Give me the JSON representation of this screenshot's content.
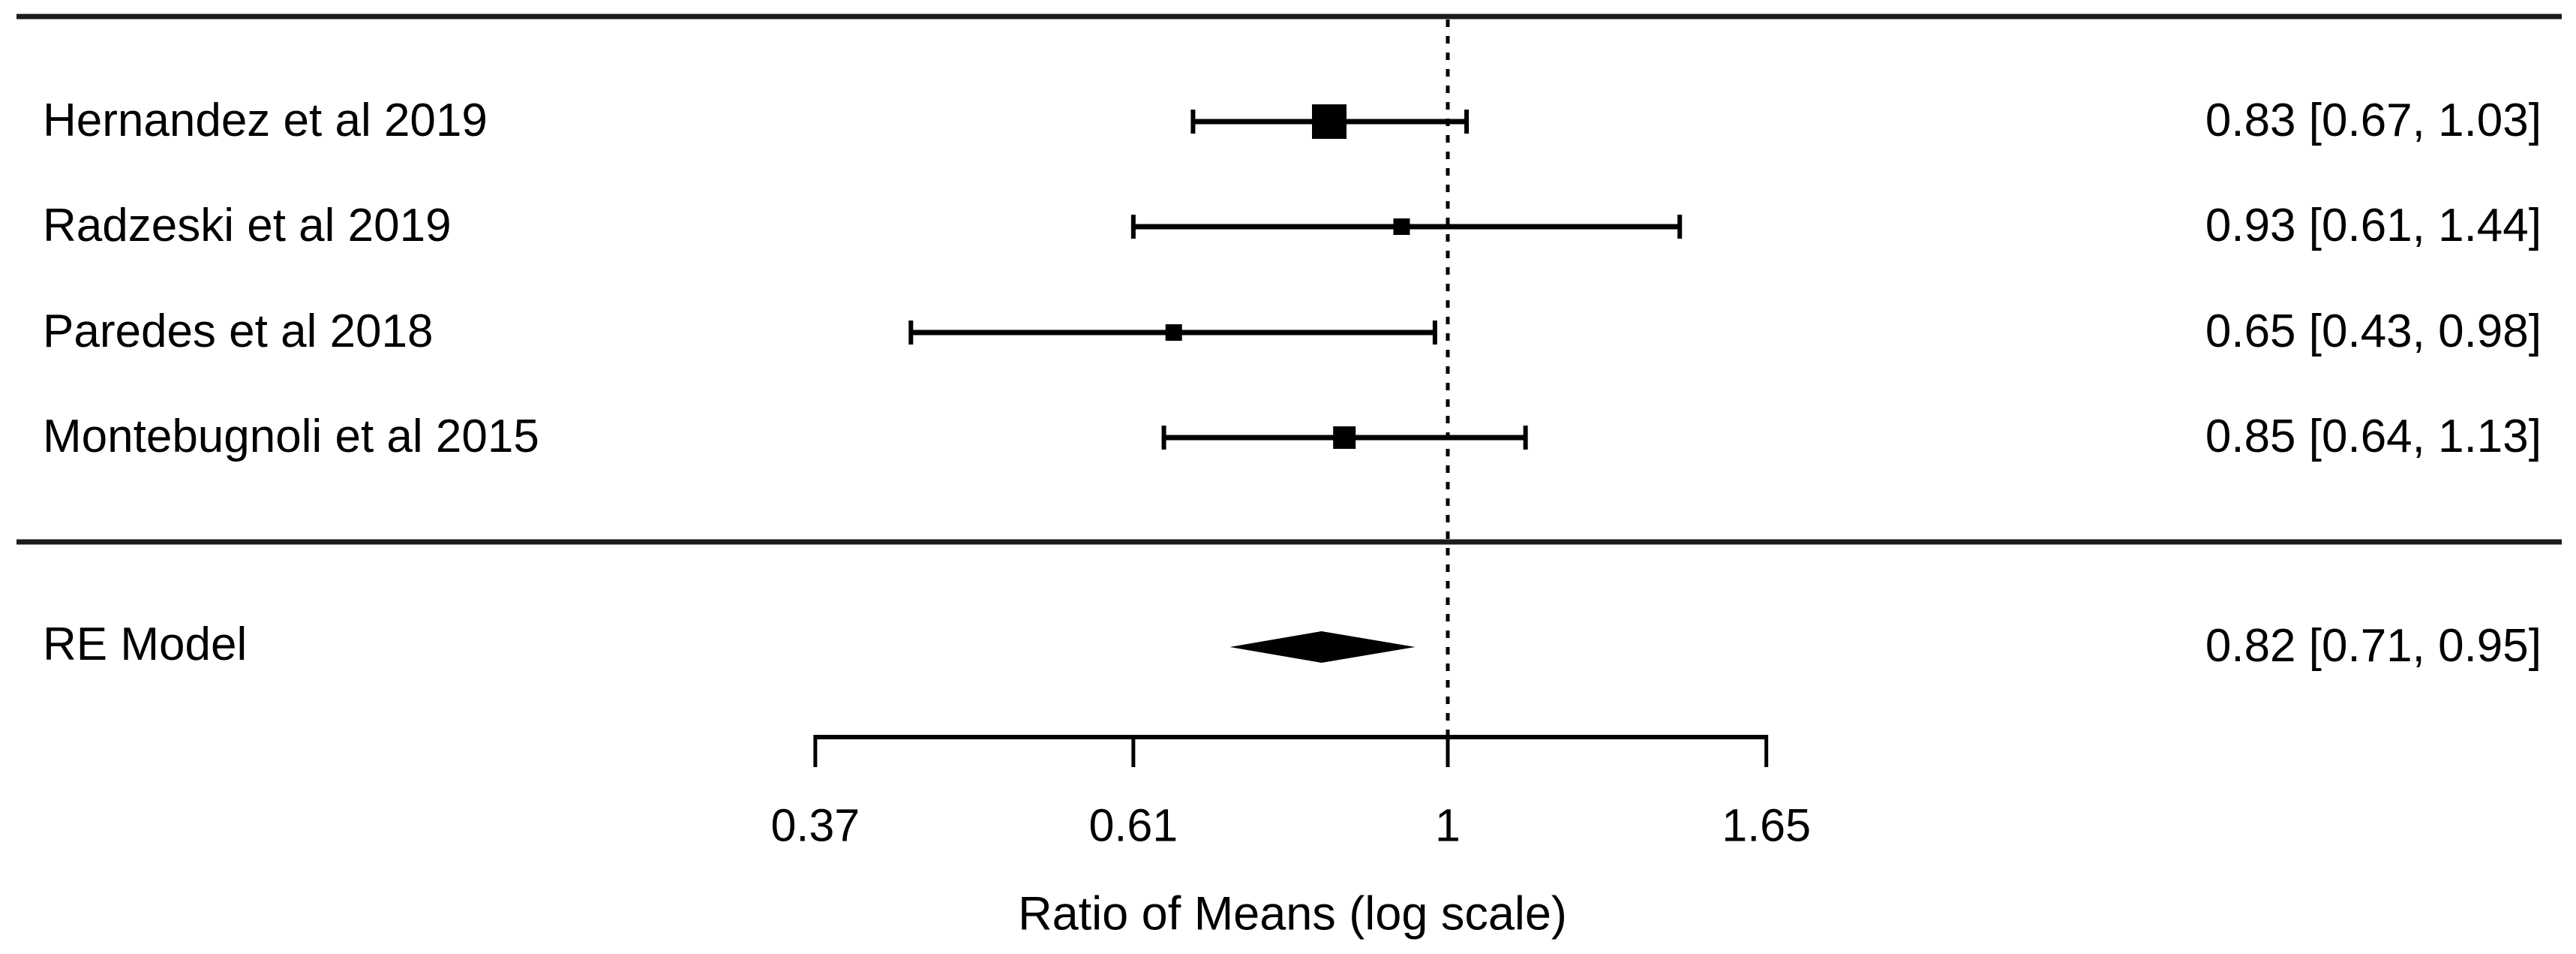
{
  "chart_data": {
    "type": "forest",
    "xlabel": "Ratio of Means (log scale)",
    "x_scale": "log",
    "x_ticks": [
      0.37,
      0.61,
      1,
      1.65
    ],
    "x_tick_labels": [
      "0.37",
      "0.61",
      "1",
      "1.65"
    ],
    "xlim": [
      0.37,
      1.65
    ],
    "reference_line": 1,
    "grid": "off",
    "studies": [
      {
        "label": "Hernandez et al 2019",
        "estimate": 0.83,
        "ci_low": 0.67,
        "ci_high": 1.03,
        "value_text": "0.83 [0.67, 1.03]",
        "marker_size": 46
      },
      {
        "label": "Radzeski et al 2019",
        "estimate": 0.93,
        "ci_low": 0.61,
        "ci_high": 1.44,
        "value_text": "0.93 [0.61, 1.44]",
        "marker_size": 22
      },
      {
        "label": "Paredes et al 2018",
        "estimate": 0.65,
        "ci_low": 0.43,
        "ci_high": 0.98,
        "value_text": "0.65 [0.43, 0.98]",
        "marker_size": 22
      },
      {
        "label": "Montebugnoli et al 2015",
        "estimate": 0.85,
        "ci_low": 0.64,
        "ci_high": 1.13,
        "value_text": "0.85 [0.64, 1.13]",
        "marker_size": 30
      }
    ],
    "summary": {
      "label": "RE Model",
      "estimate": 0.82,
      "ci_low": 0.71,
      "ci_high": 0.95,
      "value_text": "0.82 [0.71, 0.95]"
    },
    "colors": {
      "ink": "#1c1c1c",
      "marker": "#000000"
    }
  }
}
